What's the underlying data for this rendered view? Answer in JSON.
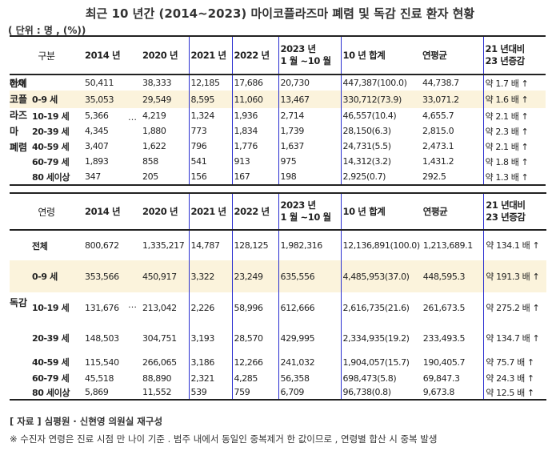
{
  "title": "최근 10 년간 (2014~2023) 마이코플라즈마 폐렴 및 독감 진료 환자 현황",
  "unit": "( 단위 : 명 , (%))",
  "table1": {
    "headers": [
      "구분",
      "2014 년",
      "2020 년",
      "2021 년",
      "2022 년",
      "2023 년\n1 월 ~10 월",
      "10 년 합계",
      "연평균",
      "21 년대비\n23 년증감"
    ],
    "group_label": [
      "마이",
      "코플",
      "라즈",
      "마",
      "폐렴"
    ],
    "rows": [
      {
        "label": "전체",
        "cells": [
          "50,411",
          "38,333",
          "12,185",
          "17,686",
          "20,730",
          "447,387(100.0)",
          "44,738.7",
          "약 1.7 배 ↑"
        ]
      },
      {
        "label": "0-9 세",
        "cells": [
          "35,053",
          "29,549",
          "8,595",
          "11,060",
          "13,467",
          "330,712(73.9)",
          "33,071.2",
          "약 1.6 배 ↑"
        ]
      },
      {
        "label": "10-19 세",
        "cells": [
          "5,366",
          "4,219",
          "1,324",
          "1,936",
          "2,714",
          "46,557(10.4)",
          "4,655.7",
          "약 2.1 배 ↑"
        ]
      },
      {
        "label": "20-39 세",
        "cells": [
          "4,345",
          "1,880",
          "773",
          "1,834",
          "1,739",
          "28,150(6.3)",
          "2,815.0",
          "약 2.3 배 ↑"
        ]
      },
      {
        "label": "40-59 세",
        "cells": [
          "3,407",
          "1,622",
          "796",
          "1,776",
          "1,637",
          "24,731(5.5)",
          "2,473.1",
          "약 2.1 배 ↑"
        ]
      },
      {
        "label": "60-79 세",
        "cells": [
          "1,893",
          "858",
          "541",
          "913",
          "975",
          "14,312(3.2)",
          "1,431.2",
          "약 1.8 배 ↑"
        ]
      },
      {
        "label": "80 세이상",
        "cells": [
          "347",
          "205",
          "156",
          "167",
          "198",
          "2,925(0.7)",
          "292.5",
          "약 1.3 배 ↑"
        ]
      }
    ],
    "ellipsis": "…"
  },
  "table2": {
    "headers": [
      "연령",
      "2014 년",
      "2020 년",
      "2021 년",
      "2022 년",
      "2023 년\n1 월 ~10 월",
      "10 년 합계",
      "연평균",
      "21 년대비\n23 년증감"
    ],
    "group_label": "독감",
    "rows": [
      {
        "label": "전체",
        "cells": [
          "800,672",
          "1,335,217",
          "14,787",
          "128,125",
          "1,982,316",
          "12,136,891(100.0)",
          "1,213,689.1",
          "약 134.1 배 ↑"
        ]
      },
      {
        "label": "0-9 세",
        "cells": [
          "353,566",
          "450,917",
          "3,322",
          "23,249",
          "635,556",
          "4,485,953(37.0)",
          "448,595.3",
          "약 191.3 배 ↑"
        ]
      },
      {
        "label": "10-19 세",
        "cells": [
          "131,676",
          "213,042",
          "2,226",
          "58,996",
          "612,666",
          "2,616,735(21.6)",
          "261,673.5",
          "약 275.2 배 ↑"
        ]
      },
      {
        "label": "20-39 세",
        "cells": [
          "148,503",
          "304,751",
          "3,193",
          "28,570",
          "429,995",
          "2,334,935(19.2)",
          "233,493.5",
          "약 134.7 배 ↑"
        ]
      },
      {
        "label": "40-59 세",
        "cells": [
          "115,540",
          "266,065",
          "3,186",
          "12,266",
          "241,032",
          "1,904,057(15.7)",
          "190,405.7",
          "약 75.7 배 ↑"
        ]
      },
      {
        "label": "60-79 세",
        "cells": [
          "45,518",
          "88,890",
          "2,321",
          "4,285",
          "56,358",
          "698,473(5.8)",
          "69,847.3",
          "약 24.3 배 ↑"
        ]
      },
      {
        "label": "80 세이상",
        "cells": [
          "5,869",
          "11,552",
          "539",
          "759",
          "6,709",
          "96,738(0.8)",
          "9,673.8",
          "약 12.5 배 ↑"
        ]
      }
    ],
    "ellipsis": "…"
  },
  "notes": {
    "source": "[ 자료 ] 심평원 · 신현영 의원실 재구성",
    "footnote": "※ 수진자 연령은 진료 시점 만 나이 기준 . 범주 내에서 동일인 중복제거 한 값이므로 , 연령별 합산 시 중복 발생"
  }
}
